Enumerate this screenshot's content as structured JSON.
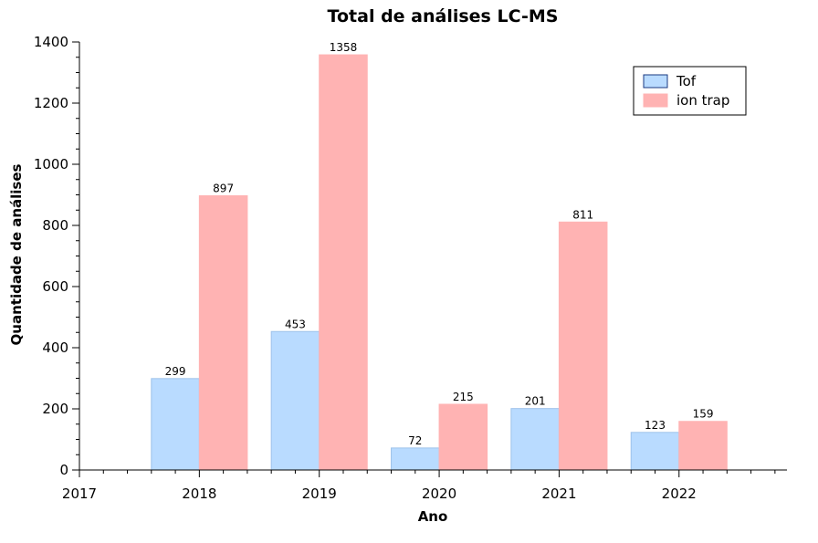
{
  "chart_data": {
    "type": "bar",
    "title": "Total de análises LC-MS",
    "xlabel": "Ano",
    "ylabel": "Quantidade de análises",
    "categories": [
      "2018",
      "2019",
      "2020",
      "2021",
      "2022"
    ],
    "x_ticks": [
      "2017",
      "2018",
      "2019",
      "2020",
      "2021",
      "2022"
    ],
    "xlim": [
      2017,
      2022.9
    ],
    "ylim": [
      0,
      1400
    ],
    "y_ticks": [
      "0",
      "200",
      "400",
      "600",
      "800",
      "1000",
      "1200",
      "1400"
    ],
    "series": [
      {
        "name": "Tof",
        "values": [
          299,
          453,
          72,
          201,
          123
        ],
        "color": "#b9dbff",
        "edge": "#9ec2ea"
      },
      {
        "name": "ion trap",
        "values": [
          897,
          1358,
          215,
          811,
          159
        ],
        "color": "#ffb3b3",
        "edge": "#ffb3b3"
      }
    ],
    "data_labels": true,
    "legend_position": "top-right",
    "grid": false
  }
}
